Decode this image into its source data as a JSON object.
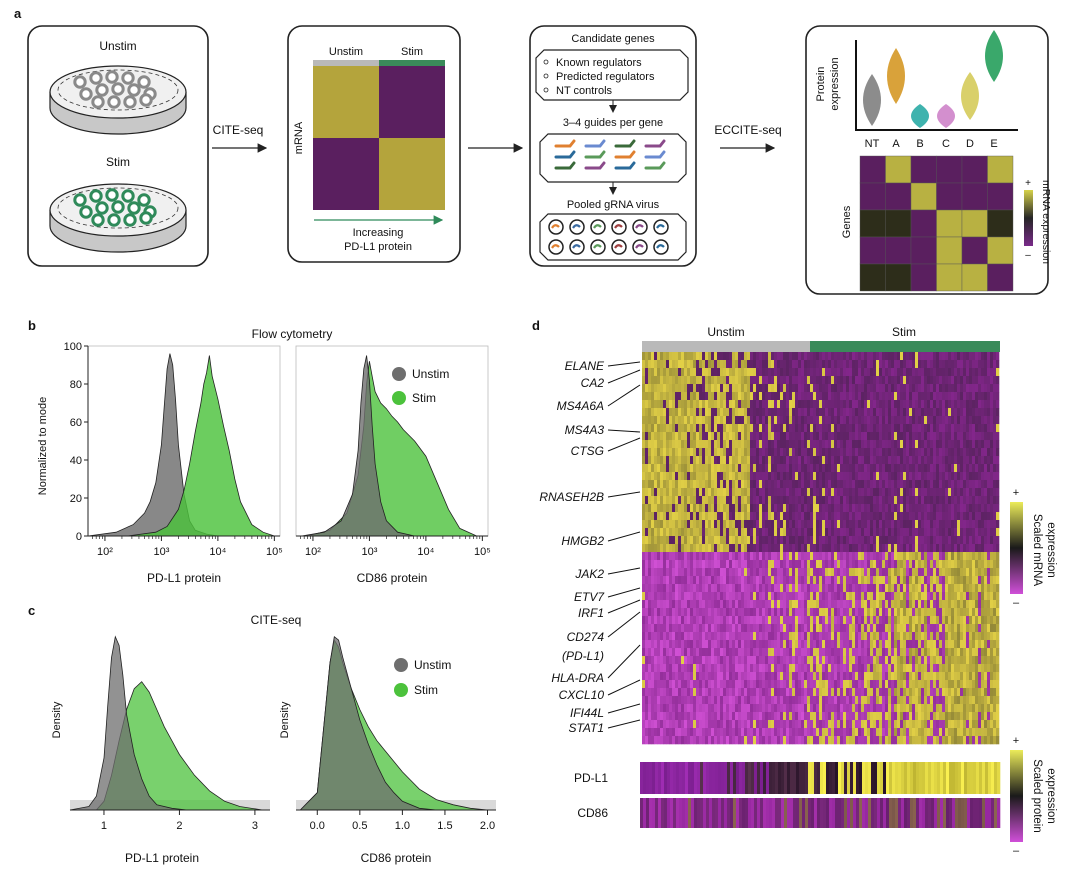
{
  "panel_labels": {
    "a": "a",
    "b": "b",
    "c": "c",
    "d": "d"
  },
  "panel_a": {
    "unstim_label": "Unstim",
    "stim_label": "Stim",
    "arrow1_label": "CITE-seq",
    "matrix": {
      "col1": "Unstim",
      "col2": "Stim",
      "ylabel": "mRNA",
      "xlabel_line1": "Increasing",
      "xlabel_line2": "PD-L1 protein"
    },
    "candidates": {
      "title": "Candidate genes",
      "items": [
        "Known regulators",
        "Predicted regulators",
        "NT controls"
      ],
      "guides_label": "3–4 guides per gene",
      "pooled_label": "Pooled gRNA virus"
    },
    "arrow3_label": "ECCITE-seq",
    "violin": {
      "ylabel_line1": "Protein",
      "ylabel_line2": "expression",
      "groups": [
        "NT",
        "A",
        "B",
        "C",
        "D",
        "E"
      ],
      "colors": [
        "#8c8c8c",
        "#d9a23a",
        "#3fb3ae",
        "#d38fce",
        "#d9d06a",
        "#3aa86b"
      ],
      "genes_label": "Genes",
      "scale_label": "mRNA expression",
      "plus": "+",
      "minus": "–"
    }
  },
  "chart_data": [
    {
      "id": "b-left",
      "type": "area",
      "panel_title": "Flow cytometry",
      "xlabel": "PD-L1 protein",
      "ylabel": "Normalized to mode",
      "xscale": "log10",
      "xlim_log10": [
        1.7,
        5.1
      ],
      "ylim": [
        0,
        100
      ],
      "yticks": [
        "0",
        "20",
        "40",
        "60",
        "80",
        "100"
      ],
      "xticks": [
        "10²",
        "10³",
        "10⁴",
        "10⁵"
      ],
      "series": [
        {
          "name": "Unstim",
          "color": "#6e6e6e",
          "x_log10": [
            1.7,
            2.2,
            2.5,
            2.7,
            2.8,
            2.9,
            3.0,
            3.05,
            3.1,
            3.15,
            3.2,
            3.25,
            3.3,
            3.4,
            3.5,
            3.6,
            3.8,
            4.0,
            4.2
          ],
          "y": [
            0,
            2,
            6,
            12,
            18,
            28,
            48,
            68,
            88,
            96,
            90,
            72,
            48,
            22,
            8,
            3,
            1,
            0,
            0
          ]
        },
        {
          "name": "Stim",
          "color": "#4cc23c",
          "x_log10": [
            2.4,
            2.9,
            3.1,
            3.3,
            3.4,
            3.5,
            3.6,
            3.7,
            3.75,
            3.8,
            3.85,
            3.9,
            4.0,
            4.1,
            4.2,
            4.3,
            4.4,
            4.6,
            4.8,
            5.0
          ],
          "y": [
            0,
            2,
            5,
            14,
            24,
            38,
            55,
            70,
            80,
            86,
            95,
            84,
            72,
            58,
            45,
            30,
            18,
            6,
            2,
            0
          ]
        }
      ]
    },
    {
      "id": "b-right",
      "type": "area",
      "xlabel": "CD86 protein",
      "xscale": "log10",
      "xlim_log10": [
        1.7,
        5.1
      ],
      "ylim": [
        0,
        100
      ],
      "xticks": [
        "10²",
        "10³",
        "10⁴",
        "10⁵"
      ],
      "legend": [
        "Unstim",
        "Stim"
      ],
      "series": [
        {
          "name": "Unstim",
          "color": "#6e6e6e",
          "x_log10": [
            1.8,
            2.2,
            2.5,
            2.7,
            2.8,
            2.85,
            2.9,
            2.95,
            3.0,
            3.05,
            3.1,
            3.2,
            3.3,
            3.5,
            3.8
          ],
          "y": [
            0,
            2,
            8,
            22,
            45,
            70,
            88,
            95,
            82,
            58,
            38,
            18,
            8,
            2,
            0
          ]
        },
        {
          "name": "Stim",
          "color": "#4cc23c",
          "x_log10": [
            1.9,
            2.3,
            2.6,
            2.8,
            2.9,
            2.95,
            3.0,
            3.05,
            3.1,
            3.2,
            3.3,
            3.4,
            3.5,
            3.6,
            3.8,
            4.0,
            4.2,
            4.4,
            4.6,
            4.9
          ],
          "y": [
            0,
            3,
            12,
            32,
            58,
            80,
            92,
            84,
            76,
            70,
            67,
            63,
            60,
            56,
            50,
            42,
            28,
            14,
            4,
            0
          ]
        }
      ]
    },
    {
      "id": "c-left",
      "type": "area",
      "panel_title": "CITE-seq",
      "xlabel": "PD-L1 protein",
      "ylabel": "Density",
      "xlim": [
        0.55,
        3.2
      ],
      "xticks": [
        "1",
        "2",
        "3"
      ],
      "xtick_values": [
        1,
        2,
        3
      ],
      "series": [
        {
          "name": "Unstim",
          "color": "#6e6e6e",
          "x": [
            0.55,
            0.8,
            0.9,
            1.0,
            1.05,
            1.1,
            1.15,
            1.2,
            1.25,
            1.3,
            1.4,
            1.5,
            1.6,
            1.7,
            1.9,
            2.1
          ],
          "y": [
            0,
            0.02,
            0.08,
            0.3,
            0.6,
            0.88,
            1.0,
            0.95,
            0.78,
            0.55,
            0.32,
            0.18,
            0.08,
            0.03,
            0.01,
            0
          ]
        },
        {
          "name": "Stim",
          "color": "#4cc23c",
          "x": [
            0.9,
            1.0,
            1.1,
            1.2,
            1.3,
            1.4,
            1.5,
            1.6,
            1.7,
            1.8,
            1.9,
            2.0,
            2.2,
            2.4,
            2.6,
            2.8,
            3.1
          ],
          "y": [
            0,
            0.05,
            0.2,
            0.4,
            0.58,
            0.7,
            0.74,
            0.68,
            0.58,
            0.48,
            0.4,
            0.32,
            0.2,
            0.11,
            0.05,
            0.02,
            0
          ]
        }
      ]
    },
    {
      "id": "c-right",
      "type": "area",
      "xlabel": "CD86 protein",
      "ylabel": "Density",
      "xlim": [
        -0.25,
        2.1
      ],
      "xticks": [
        "0.0",
        "0.5",
        "1.0",
        "1.5",
        "2.0"
      ],
      "xtick_values": [
        0,
        0.5,
        1.0,
        1.5,
        2.0
      ],
      "legend": [
        "Unstim",
        "Stim"
      ],
      "series": [
        {
          "name": "Unstim",
          "color": "#6e6e6e",
          "x": [
            -0.2,
            0.0,
            0.1,
            0.15,
            0.2,
            0.25,
            0.3,
            0.4,
            0.5,
            0.6,
            0.7,
            0.8,
            0.9,
            1.0,
            1.2,
            1.4
          ],
          "y": [
            0,
            0.1,
            0.6,
            0.85,
            1.0,
            0.98,
            0.88,
            0.7,
            0.52,
            0.38,
            0.26,
            0.16,
            0.1,
            0.05,
            0.01,
            0
          ]
        },
        {
          "name": "Stim",
          "color": "#4cc23c",
          "x": [
            -0.2,
            0.0,
            0.1,
            0.15,
            0.2,
            0.25,
            0.3,
            0.4,
            0.5,
            0.6,
            0.7,
            0.8,
            0.9,
            1.0,
            1.1,
            1.2,
            1.4,
            1.6,
            1.8,
            2.0
          ],
          "y": [
            0,
            0.1,
            0.6,
            0.85,
            0.98,
            0.94,
            0.85,
            0.7,
            0.58,
            0.48,
            0.4,
            0.34,
            0.28,
            0.22,
            0.17,
            0.12,
            0.06,
            0.03,
            0.01,
            0
          ]
        }
      ]
    },
    {
      "id": "d-heatmap",
      "type": "heatmap",
      "groups": [
        "Unstim",
        "Stim"
      ],
      "group_colors": [
        "#b9b9b9",
        "#3a8a5a"
      ],
      "genes_top": [
        "ELANE",
        "CA2",
        "MS4A6A",
        "MS4A3",
        "CTSG",
        "RNASEH2B",
        "HMGB2"
      ],
      "genes_bottom": [
        "JAK2",
        "ETV7",
        "IRF1",
        "CD274",
        "(PD-L1)",
        "HLA-DRA",
        "CXCL10",
        "IFI44L",
        "STAT1"
      ],
      "protein_rows": [
        "PD-L1",
        "CD86"
      ],
      "scale_mrna": "Scaled mRNA expression",
      "scale_protein": "Scaled protein expression",
      "plus": "+",
      "minus": "–"
    }
  ],
  "legend_labels": {
    "unstim": "Unstim",
    "stim": "Stim"
  },
  "scale_texts": {
    "mrna_line1": "Scaled mRNA",
    "mrna_line2": "expression",
    "protein_line1": "Scaled protein",
    "protein_line2": "expression"
  }
}
